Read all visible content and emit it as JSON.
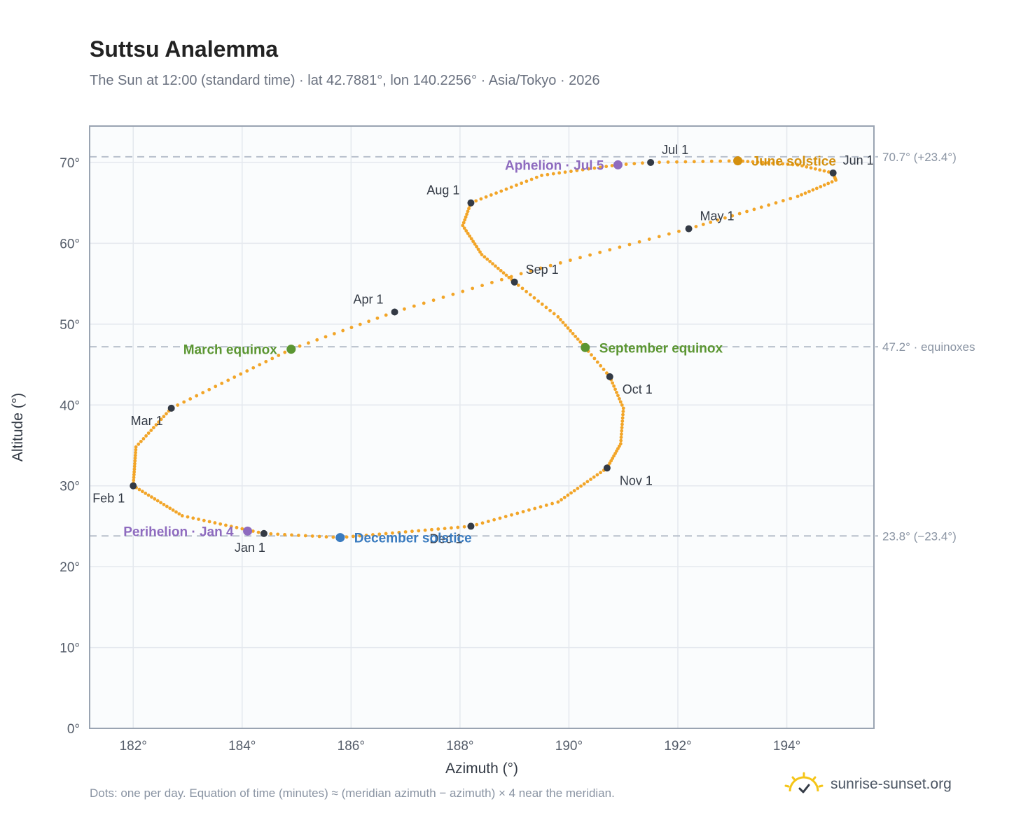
{
  "title": "Suttsu Analemma",
  "subtitle": "The Sun at 12:00 (standard time) · lat 42.7881°, lon 140.2256° · Asia/Tokyo · 2026",
  "footnote": "Dots: one per day. Equation of time (minutes) ≈ (meridian azimuth − azimuth) × 4 near the meridian.",
  "brand": {
    "text": "sunrise-sunset.org",
    "icon": "sun-logo-icon"
  },
  "colors": {
    "path": "#f2a528",
    "month_marker": "#333a45",
    "june_solstice": "#d4900e",
    "december_solstice": "#3a7bbf",
    "equinox": "#5b9632",
    "apsis": "#8e6bbf",
    "reference_line": "#b8c0cc",
    "plot_background": "#fafcfd",
    "grid": "#e4e8ee"
  },
  "chart_data": {
    "type": "scatter",
    "title": "Suttsu Analemma",
    "xlabel": "Azimuth (°)",
    "ylabel": "Altitude (°)",
    "xlim": [
      181.2,
      195.6
    ],
    "ylim": [
      0,
      74.5
    ],
    "x_ticks": [
      {
        "value": 182,
        "label": "182°"
      },
      {
        "value": 184,
        "label": "184°"
      },
      {
        "value": 186,
        "label": "186°"
      },
      {
        "value": 188,
        "label": "188°"
      },
      {
        "value": 190,
        "label": "190°"
      },
      {
        "value": 192,
        "label": "192°"
      },
      {
        "value": 194,
        "label": "194°"
      }
    ],
    "y_ticks": [
      {
        "value": 0,
        "label": "0°"
      },
      {
        "value": 10,
        "label": "10°"
      },
      {
        "value": 20,
        "label": "20°"
      },
      {
        "value": 30,
        "label": "30°"
      },
      {
        "value": 40,
        "label": "40°"
      },
      {
        "value": 50,
        "label": "50°"
      },
      {
        "value": 60,
        "label": "60°"
      },
      {
        "value": 70,
        "label": "70°"
      }
    ],
    "grid": true,
    "reference_lines": [
      {
        "y": 70.7,
        "label": "70.7° (+23.4°)"
      },
      {
        "y": 47.2,
        "label": "47.2° · equinoxes"
      },
      {
        "y": 23.8,
        "label": "23.8° (−23.4°)"
      }
    ],
    "path_anchors": [
      {
        "doy": 1,
        "az": 184.4,
        "alt": 24.1
      },
      {
        "doy": 16,
        "az": 182.9,
        "alt": 26.3
      },
      {
        "doy": 32,
        "az": 182.0,
        "alt": 30.0
      },
      {
        "doy": 46,
        "az": 182.05,
        "alt": 34.8
      },
      {
        "doy": 60,
        "az": 182.7,
        "alt": 39.6
      },
      {
        "doy": 79,
        "az": 184.9,
        "alt": 46.9
      },
      {
        "doy": 91,
        "az": 186.8,
        "alt": 51.5
      },
      {
        "doy": 105,
        "az": 189.3,
        "alt": 56.6
      },
      {
        "doy": 121,
        "az": 192.2,
        "alt": 61.8
      },
      {
        "doy": 136,
        "az": 194.2,
        "alt": 65.8
      },
      {
        "doy": 146,
        "az": 194.9,
        "alt": 67.8
      },
      {
        "doy": 152,
        "az": 194.85,
        "alt": 68.7
      },
      {
        "doy": 160,
        "az": 194.2,
        "alt": 69.7
      },
      {
        "doy": 172,
        "az": 193.1,
        "alt": 70.2
      },
      {
        "doy": 182,
        "az": 191.5,
        "alt": 70.0
      },
      {
        "doy": 186,
        "az": 190.9,
        "alt": 69.7
      },
      {
        "doy": 199,
        "az": 189.5,
        "alt": 68.4
      },
      {
        "doy": 213,
        "az": 188.2,
        "alt": 65.0
      },
      {
        "doy": 221,
        "az": 188.05,
        "alt": 62.2
      },
      {
        "doy": 232,
        "az": 188.4,
        "alt": 58.6
      },
      {
        "doy": 244,
        "az": 189.0,
        "alt": 55.2
      },
      {
        "doy": 255,
        "az": 189.8,
        "alt": 50.9
      },
      {
        "doy": 266,
        "az": 190.3,
        "alt": 47.1
      },
      {
        "doy": 274,
        "az": 190.75,
        "alt": 43.5
      },
      {
        "doy": 284,
        "az": 191.0,
        "alt": 39.6
      },
      {
        "doy": 295,
        "az": 190.95,
        "alt": 35.2
      },
      {
        "doy": 305,
        "az": 190.7,
        "alt": 32.2
      },
      {
        "doy": 320,
        "az": 189.8,
        "alt": 28.0
      },
      {
        "doy": 335,
        "az": 188.2,
        "alt": 25.0
      },
      {
        "doy": 355,
        "az": 185.8,
        "alt": 23.6
      },
      {
        "doy": 366,
        "az": 184.4,
        "alt": 24.1
      }
    ],
    "month_markers": [
      {
        "label": "Jan 1",
        "az": 184.4,
        "alt": 24.1,
        "pos": "below"
      },
      {
        "label": "Feb 1",
        "az": 182.0,
        "alt": 30.0,
        "pos": "below-left"
      },
      {
        "label": "Mar 1",
        "az": 182.7,
        "alt": 39.6,
        "pos": "below-left"
      },
      {
        "label": "Apr 1",
        "az": 186.8,
        "alt": 51.5,
        "pos": "above-left"
      },
      {
        "label": "May 1",
        "az": 192.2,
        "alt": 61.8,
        "pos": "above-right"
      },
      {
        "label": "Jun 1",
        "az": 194.85,
        "alt": 68.7,
        "pos": "right"
      },
      {
        "label": "Jul 1",
        "az": 191.5,
        "alt": 70.0,
        "pos": "above-right"
      },
      {
        "label": "Aug 1",
        "az": 188.2,
        "alt": 65.0,
        "pos": "above-left"
      },
      {
        "label": "Sep 1",
        "az": 189.0,
        "alt": 55.2,
        "pos": "above-right"
      },
      {
        "label": "Oct 1",
        "az": 190.75,
        "alt": 43.5,
        "pos": "below-right"
      },
      {
        "label": "Nov 1",
        "az": 190.7,
        "alt": 32.2,
        "pos": "below-right"
      },
      {
        "label": "Dec 1",
        "az": 188.2,
        "alt": 25.0,
        "pos": "below-left"
      }
    ],
    "events": [
      {
        "label": "June solstice",
        "az": 193.1,
        "alt": 70.2,
        "color_key": "june_solstice",
        "side": "right"
      },
      {
        "label": "December solstice",
        "az": 185.8,
        "alt": 23.6,
        "color_key": "december_solstice",
        "side": "right"
      },
      {
        "label": "March equinox",
        "az": 184.9,
        "alt": 46.9,
        "color_key": "equinox",
        "side": "left"
      },
      {
        "label": "September equinox",
        "az": 190.3,
        "alt": 47.1,
        "color_key": "equinox",
        "side": "right"
      },
      {
        "label": "Aphelion · Jul 5",
        "az": 190.9,
        "alt": 69.7,
        "color_key": "apsis",
        "side": "left"
      },
      {
        "label": "Perihelion · Jan 4",
        "az": 184.1,
        "alt": 24.4,
        "color_key": "apsis",
        "side": "left"
      }
    ]
  }
}
